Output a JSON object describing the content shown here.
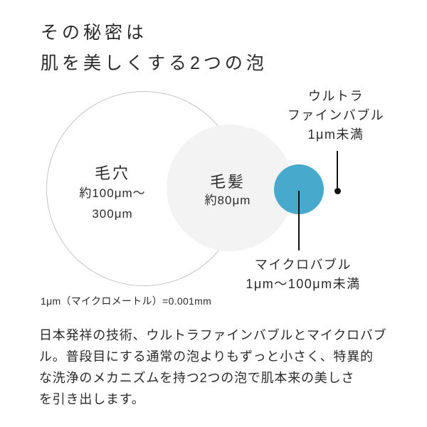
{
  "title": {
    "line1": "その秘密は",
    "line2": "肌を美しくする2つの泡"
  },
  "diagram": {
    "pore": {
      "name": "毛穴",
      "size_line1": "約100μm〜",
      "size_line2": "300μm"
    },
    "hair": {
      "name": "毛髪",
      "size": "約80μm"
    },
    "ultra_fine_bubble": {
      "name_line1": "ウルトラ",
      "name_line2": "ファインバブル",
      "size": "1μm未満"
    },
    "micro_bubble": {
      "name": "マイクロバブル",
      "size": "1μm〜100μm未満"
    },
    "note": "1μm（マイクロメートル）=0.001mm",
    "colors": {
      "bubble_blue": "#47a9cc",
      "hair_circle_fill": "#f3f3f4",
      "pore_circle_outline": "#c4c4c4",
      "pointer_black": "#111111",
      "text": "#2b2b2b"
    }
  },
  "body": {
    "lines": [
      "日本発祥の技術、ウルトラファインバブルとマイクロバブ",
      "ル。普段目にする通常の泡よりもずっと小さく、特異的",
      "な洗浄のメカニズムを持つ2つの泡で肌本来の美しさ",
      "を引き出します。"
    ]
  }
}
